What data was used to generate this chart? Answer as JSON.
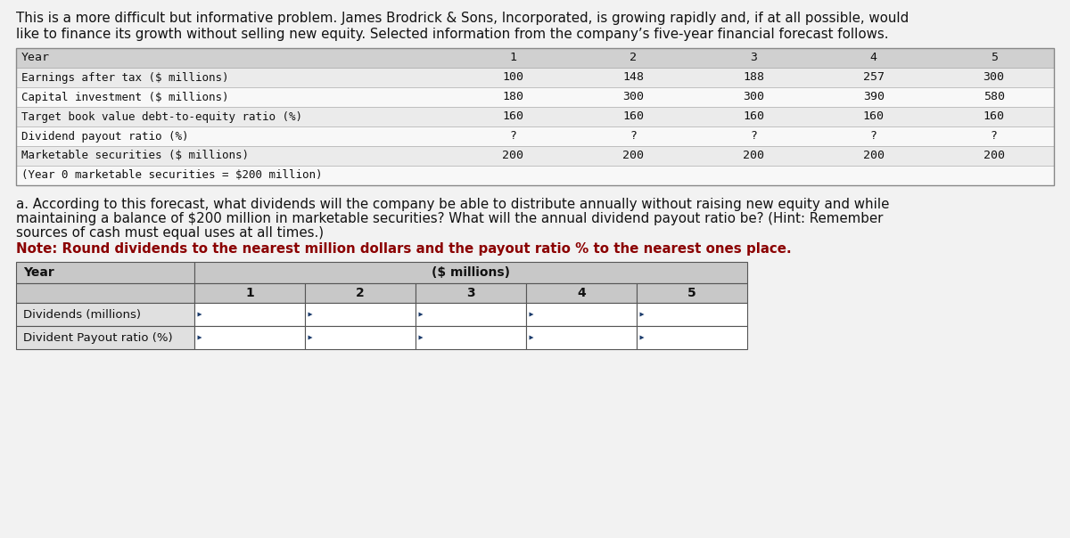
{
  "intro_line1": "This is a more difficult but informative problem. James Brodrick & Sons, Incorporated, is growing rapidly and, if at all possible, would",
  "intro_line2": "like to finance its growth without selling new equity. Selected information from the company’s five-year financial forecast follows.",
  "table1": {
    "row_labels": [
      "Year",
      "Earnings after tax ($ millions)",
      "Capital investment ($ millions)",
      "Target book value debt-to-equity ratio (%)",
      "Dividend payout ratio (%)",
      "Marketable securities ($ millions)",
      "(Year 0 marketable securities = $200 million)"
    ],
    "col_headers": [
      "1",
      "2",
      "3",
      "4",
      "5"
    ],
    "data": [
      [
        "100",
        "148",
        "188",
        "257",
        "300"
      ],
      [
        "180",
        "300",
        "300",
        "390",
        "580"
      ],
      [
        "160",
        "160",
        "160",
        "160",
        "160"
      ],
      [
        "?",
        "?",
        "?",
        "?",
        "?"
      ],
      [
        "200",
        "200",
        "200",
        "200",
        "200"
      ],
      [
        "",
        "",
        "",
        "",
        ""
      ]
    ],
    "header_bg": "#d0d0d0",
    "row_bg_alt": "#ebebeb",
    "row_bg": "#f8f8f8"
  },
  "question_text_normal": "a. According to this forecast, what dividends will the company be able to distribute annually without raising new equity and while\nmaintaining a balance of $200 million in marketable securities? What will the annual dividend payout ratio be? (Hint: Remember\nsources of cash must equal uses at all times.)",
  "question_text_bold": "Note: Round dividends to the nearest million dollars and the payout ratio % to the nearest ones place.",
  "table2": {
    "row_labels": [
      "Year",
      "Dividends (millions)",
      "Divident Payout ratio (%)"
    ],
    "col_header_span": "($ millions)",
    "col_headers": [
      "1",
      "2",
      "3",
      "4",
      "5"
    ],
    "header_bg": "#c8c8c8",
    "label_bg": "#e0e0e0",
    "cell_bg": "#ffffff",
    "border_color": "#555555",
    "blue_accent": "#1a3a6b"
  },
  "bg_color": "#f2f2f2",
  "text_color": "#111111",
  "font_size_intro": 10.8,
  "font_size_table": 9.5,
  "font_size_question": 10.8,
  "font_size_note": 10.8
}
